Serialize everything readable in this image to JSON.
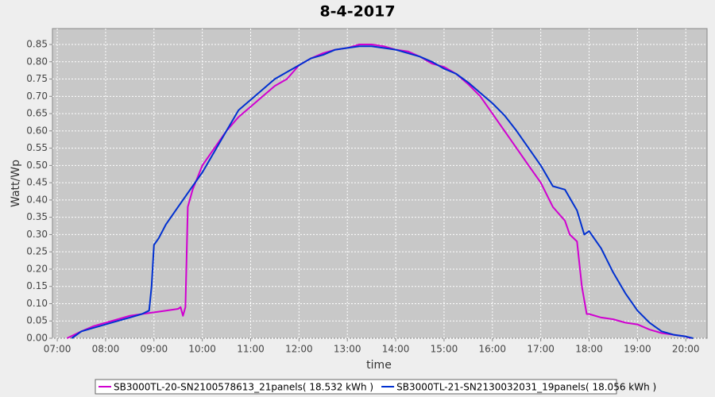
{
  "chart_data": {
    "type": "line",
    "title": "8-4-2017",
    "x_label": "time",
    "y_label": "Watt/Wp",
    "xlim": [
      6.9,
      20.44
    ],
    "ylim": [
      0,
      0.896
    ],
    "xticks": [
      {
        "value": 7,
        "label": "07:00"
      },
      {
        "value": 8,
        "label": "08:00"
      },
      {
        "value": 9,
        "label": "09:00"
      },
      {
        "value": 10,
        "label": "10:00"
      },
      {
        "value": 11,
        "label": "11:00"
      },
      {
        "value": 12,
        "label": "12:00"
      },
      {
        "value": 13,
        "label": "13:00"
      },
      {
        "value": 14,
        "label": "14:00"
      },
      {
        "value": 15,
        "label": "15:00"
      },
      {
        "value": 16,
        "label": "16:00"
      },
      {
        "value": 17,
        "label": "17:00"
      },
      {
        "value": 18,
        "label": "18:00"
      },
      {
        "value": 19,
        "label": "19:00"
      },
      {
        "value": 20,
        "label": "20:00"
      }
    ],
    "yticks": [
      {
        "value": 0,
        "label": "0.00"
      },
      0.05,
      {
        "value": 0.1,
        "label": "0.10"
      },
      0.15,
      {
        "value": 0.2,
        "label": "0.20"
      },
      0.25,
      {
        "value": 0.3,
        "label": "0.30"
      },
      0.35,
      {
        "value": 0.4,
        "label": "0.40"
      },
      0.45,
      {
        "value": 0.5,
        "label": "0.50"
      },
      0.55,
      {
        "value": 0.6,
        "label": "0.60"
      },
      0.65,
      {
        "value": 0.7,
        "label": "0.70"
      },
      0.75,
      {
        "value": 0.8,
        "label": "0.80"
      },
      0.85
    ],
    "grid": true,
    "legend": "bottom",
    "series": [
      {
        "name": "SB3000TL-20-SN2100578613_21panels( 18.532 kWh )",
        "color": "#d000d0",
        "x": [
          7.2,
          7.5,
          7.75,
          8.0,
          8.25,
          8.5,
          8.75,
          9.0,
          9.25,
          9.5,
          9.55,
          9.6,
          9.65,
          9.7,
          9.8,
          10.0,
          10.25,
          10.5,
          10.75,
          11.0,
          11.25,
          11.5,
          11.75,
          12.0,
          12.25,
          12.5,
          12.75,
          13.0,
          13.25,
          13.5,
          13.75,
          14.0,
          14.25,
          14.5,
          14.75,
          15.0,
          15.25,
          15.5,
          15.75,
          16.0,
          16.25,
          16.5,
          16.75,
          17.0,
          17.25,
          17.5,
          17.6,
          17.75,
          17.85,
          17.95,
          18.0,
          18.25,
          18.5,
          18.75,
          19.0,
          19.25,
          19.5,
          19.75,
          20.0,
          20.1
        ],
        "values": [
          0.0,
          0.02,
          0.035,
          0.045,
          0.055,
          0.065,
          0.07,
          0.075,
          0.08,
          0.085,
          0.09,
          0.065,
          0.09,
          0.38,
          0.43,
          0.5,
          0.55,
          0.6,
          0.64,
          0.67,
          0.7,
          0.73,
          0.75,
          0.79,
          0.81,
          0.825,
          0.835,
          0.84,
          0.85,
          0.85,
          0.845,
          0.835,
          0.83,
          0.815,
          0.795,
          0.785,
          0.765,
          0.735,
          0.7,
          0.65,
          0.6,
          0.55,
          0.5,
          0.45,
          0.38,
          0.34,
          0.3,
          0.28,
          0.15,
          0.07,
          0.07,
          0.06,
          0.055,
          0.045,
          0.04,
          0.025,
          0.015,
          0.01,
          0.005,
          0.0
        ]
      },
      {
        "name": "SB3000TL-21-SN2130032031_19panels( 18.056 kWh )",
        "color": "#0030d0",
        "x": [
          7.3,
          7.5,
          7.75,
          8.0,
          8.25,
          8.5,
          8.75,
          8.9,
          8.95,
          9.0,
          9.1,
          9.25,
          9.5,
          9.75,
          10.0,
          10.25,
          10.5,
          10.75,
          11.0,
          11.25,
          11.5,
          11.75,
          12.0,
          12.25,
          12.5,
          12.75,
          13.0,
          13.25,
          13.5,
          13.75,
          14.0,
          14.25,
          14.5,
          14.75,
          15.0,
          15.25,
          15.5,
          15.75,
          16.0,
          16.25,
          16.5,
          16.75,
          17.0,
          17.25,
          17.5,
          17.75,
          17.9,
          18.0,
          18.25,
          18.5,
          18.75,
          19.0,
          19.25,
          19.5,
          19.75,
          20.0,
          20.15
        ],
        "values": [
          0.0,
          0.02,
          0.03,
          0.04,
          0.05,
          0.06,
          0.07,
          0.08,
          0.15,
          0.27,
          0.29,
          0.33,
          0.38,
          0.43,
          0.48,
          0.54,
          0.6,
          0.66,
          0.69,
          0.72,
          0.75,
          0.77,
          0.79,
          0.81,
          0.82,
          0.835,
          0.84,
          0.845,
          0.845,
          0.84,
          0.835,
          0.825,
          0.815,
          0.8,
          0.78,
          0.765,
          0.74,
          0.71,
          0.68,
          0.645,
          0.6,
          0.55,
          0.5,
          0.44,
          0.43,
          0.37,
          0.3,
          0.31,
          0.26,
          0.19,
          0.13,
          0.08,
          0.045,
          0.02,
          0.01,
          0.005,
          0.0
        ]
      }
    ]
  }
}
